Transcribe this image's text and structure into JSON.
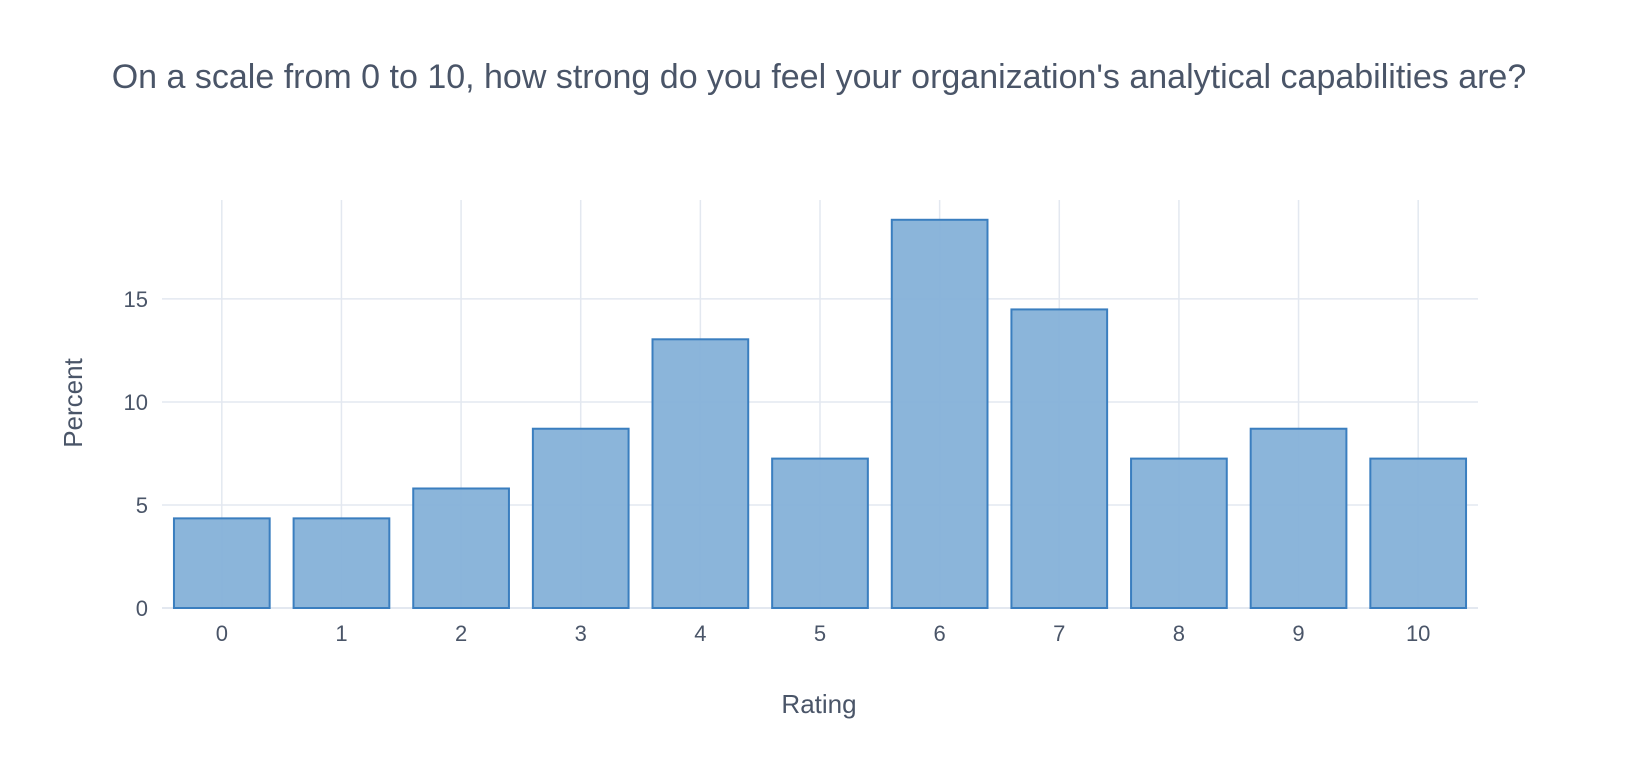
{
  "chart_data": {
    "type": "bar",
    "title": "On a scale from 0 to 10, how strong do you feel your organization's analytical capabilities are?",
    "xlabel": "Rating",
    "ylabel": "Percent",
    "categories": [
      "0",
      "1",
      "2",
      "3",
      "4",
      "5",
      "6",
      "7",
      "8",
      "9",
      "10"
    ],
    "values": [
      4.35,
      4.35,
      5.8,
      8.7,
      13.04,
      7.25,
      18.84,
      14.49,
      7.25,
      8.7,
      7.25
    ],
    "ylim": [
      0,
      19.8
    ],
    "yticks": [
      "0",
      "5",
      "10",
      "15"
    ],
    "ytick_values": [
      0,
      5,
      10,
      15
    ],
    "grid": true,
    "colors": {
      "bar_fill": "#85b1d8",
      "bar_stroke": "#3a7ebf",
      "grid": "#e3e8f0",
      "text": "#4a5568"
    }
  }
}
